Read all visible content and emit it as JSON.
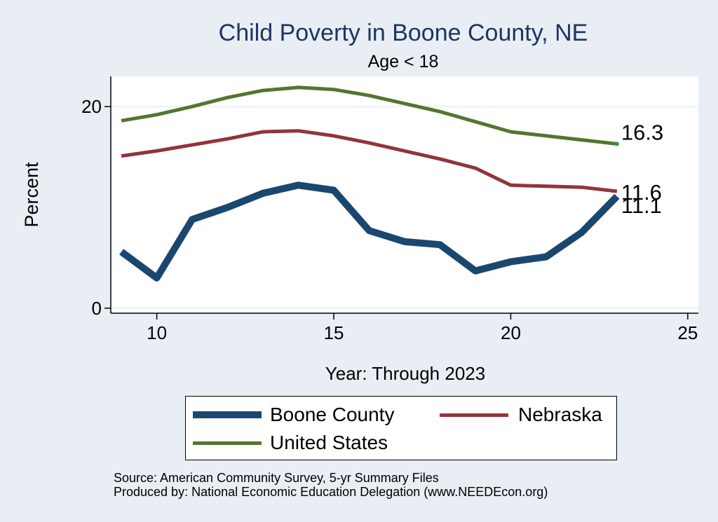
{
  "chart_data": {
    "type": "line",
    "title": "Child Poverty in Boone County, NE",
    "subtitle": "Age < 18",
    "xlabel": "Year: Through 2023",
    "ylabel": "Percent",
    "xlim": [
      8.7,
      25.3
    ],
    "ylim": [
      -0.5,
      23
    ],
    "xticks": [
      10,
      15,
      20,
      25
    ],
    "yticks": [
      0,
      20
    ],
    "grid": true,
    "legend_position": "bottom",
    "series": [
      {
        "name": "Boone County",
        "color": "#1a476f",
        "line_width": 10,
        "x": [
          9,
          10,
          11,
          12,
          13,
          14,
          15,
          16,
          17,
          18,
          19,
          20,
          21,
          22,
          23
        ],
        "y": [
          5.6,
          3.0,
          8.8,
          10.0,
          11.4,
          12.2,
          11.7,
          7.7,
          6.6,
          6.3,
          3.7,
          4.6,
          5.1,
          7.5,
          11.1
        ],
        "end_label": "11.1"
      },
      {
        "name": "Nebraska",
        "color": "#90353b",
        "line_width": 5,
        "x": [
          9,
          10,
          11,
          12,
          13,
          14,
          15,
          16,
          17,
          18,
          19,
          20,
          21,
          22,
          23
        ],
        "y": [
          15.1,
          15.6,
          16.2,
          16.8,
          17.5,
          17.6,
          17.1,
          16.4,
          15.6,
          14.8,
          13.9,
          12.2,
          12.1,
          12.0,
          11.6
        ],
        "end_label": "11.6"
      },
      {
        "name": "United States",
        "color": "#55752f",
        "line_width": 5,
        "x": [
          9,
          10,
          11,
          12,
          13,
          14,
          15,
          16,
          17,
          18,
          19,
          20,
          21,
          22,
          23
        ],
        "y": [
          18.6,
          19.2,
          20.0,
          20.9,
          21.6,
          21.9,
          21.7,
          21.1,
          20.3,
          19.5,
          18.5,
          17.5,
          17.1,
          16.7,
          16.3
        ],
        "end_label": "16.3"
      }
    ]
  },
  "footer": {
    "source": "Source: American Community Survey, 5-yr Summary Files",
    "produced": "Produced by: National Economic Education Delegation (www.NEEDEcon.org)"
  }
}
